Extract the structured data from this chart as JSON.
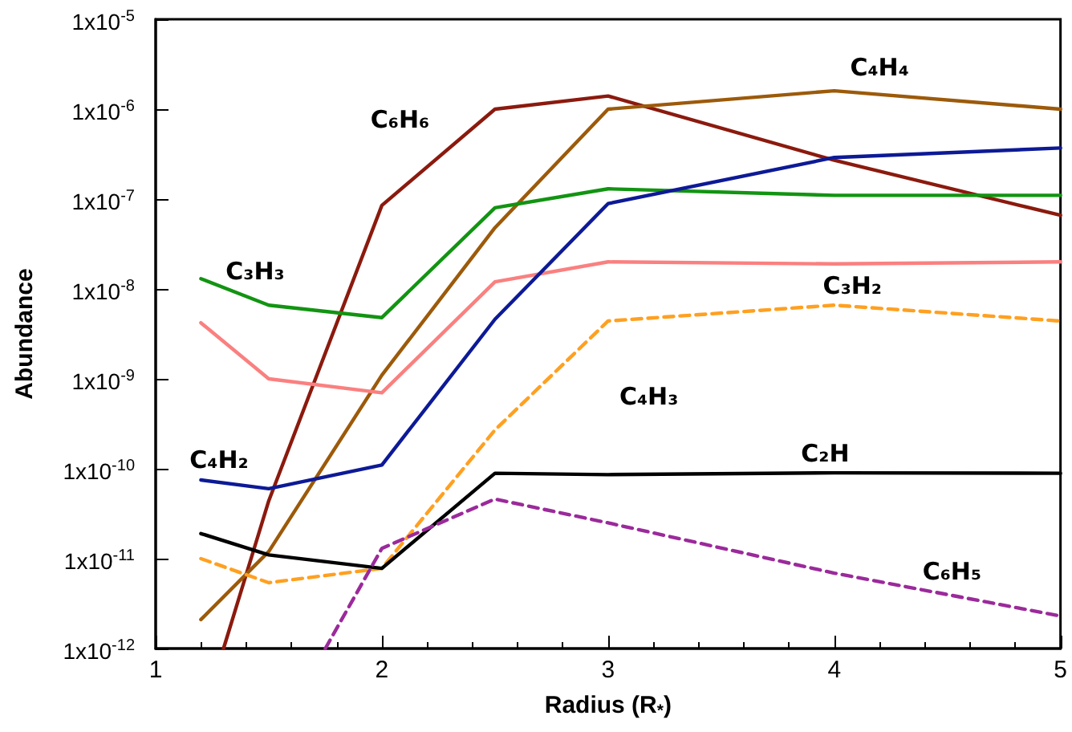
{
  "chart_data": {
    "type": "line",
    "xlabel": "Radius (R$_{*}$)",
    "ylabel": "Abundance",
    "x": [
      1.2,
      1.5,
      2,
      2.5,
      3,
      4,
      5
    ],
    "series": [
      {
        "name": "C₆H₆",
        "color": "#8b1a0e",
        "x": [
          1.3,
          1.5,
          2,
          2.5,
          3,
          4,
          5
        ],
        "values": [
          1e-12,
          4.4e-11,
          8.5e-08,
          1e-06,
          1.4e-06,
          2.7e-07,
          6.6e-08
        ]
      },
      {
        "name": "C₄H₄",
        "color": "#9c5a0a",
        "values": [
          2.1e-12,
          1.2e-11,
          1.1e-09,
          4.8e-08,
          1e-06,
          1.6e-06,
          1e-06
        ]
      },
      {
        "name": "C₃H₃",
        "color": "#129412",
        "values": [
          1.3e-08,
          6.6e-09,
          4.8e-09,
          8e-08,
          1.3e-07,
          1.1e-07,
          1.1e-07
        ]
      },
      {
        "name": "C₃H₂",
        "color": "#fa8080",
        "values": [
          4.2e-09,
          1e-09,
          7e-10,
          1.2e-08,
          2e-08,
          1.9e-08,
          2e-08
        ]
      },
      {
        "name": "C₄H₂",
        "color": "#0d1a96",
        "values": [
          7.5e-11,
          6e-11,
          1.1e-10,
          4.6e-09,
          8.9e-08,
          2.9e-07,
          3.7e-07
        ]
      },
      {
        "name": "C₄H₃",
        "color": "#ffa020",
        "line_style": "dashed",
        "values": [
          1e-11,
          5.4e-12,
          7.8e-12,
          2.7e-10,
          4.4e-09,
          6.6e-09,
          4.4e-09
        ]
      },
      {
        "name": "C₂H",
        "color": "#000000",
        "values": [
          1.9e-11,
          1.1e-11,
          7.8e-12,
          8.9e-11,
          8.6e-11,
          9e-11,
          8.9e-11
        ]
      },
      {
        "name": "C₆H₅",
        "color": "#9b2a9b",
        "line_style": "dashed",
        "x": [
          1.75,
          2,
          2.5,
          3,
          4,
          5
        ],
        "values": [
          1e-12,
          1.3e-11,
          4.6e-11,
          2.5e-11,
          6.9e-12,
          2.3e-12
        ]
      }
    ],
    "xlim": [
      1,
      5
    ],
    "xticks": [
      1,
      2,
      3,
      4,
      5
    ],
    "ylim": [
      1e-12,
      1e-05
    ],
    "yticks": [
      {
        "value": 1e-12,
        "label": "1x10$^{-12}$"
      },
      {
        "value": 1e-11,
        "label": "1x10$^{-11}$"
      },
      {
        "value": 1e-10,
        "label": "1x10$^{-10}$"
      },
      {
        "value": 1e-09,
        "label": "1x10$^{-9}$"
      },
      {
        "value": 1e-08,
        "label": "1x10$^{-8}$"
      },
      {
        "value": 1e-07,
        "label": "1x10$^{-7}$"
      },
      {
        "value": 1e-06,
        "label": "1x10$^{-6}$"
      },
      {
        "value": 1e-05,
        "label": "1x10$^{-5}$"
      }
    ],
    "log": "y",
    "grid": false,
    "legend": false,
    "marker": "none",
    "line_style": "solid"
  }
}
